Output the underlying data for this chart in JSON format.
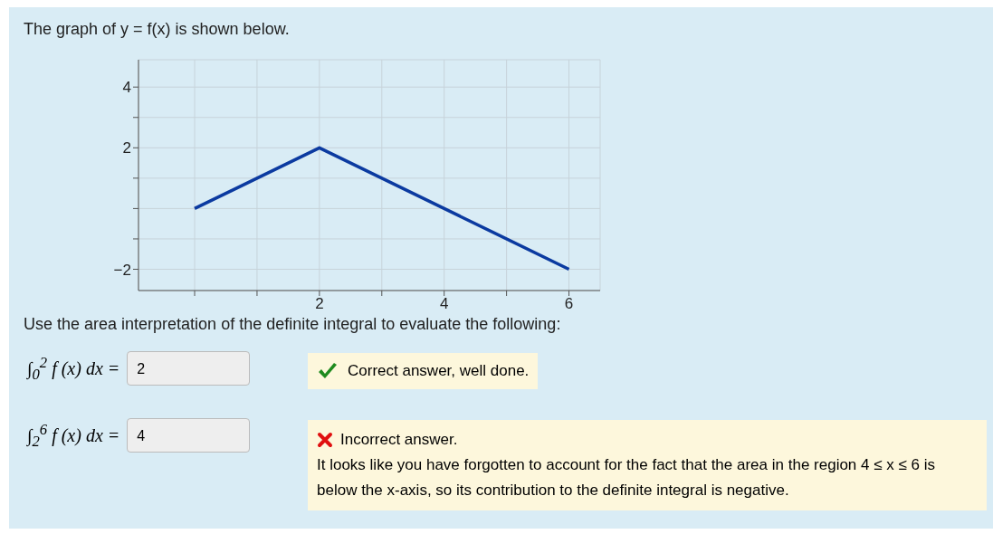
{
  "chart_data": {
    "type": "line",
    "title": "The graph of y = f(x) is shown below.",
    "x": [
      0,
      2,
      4,
      6
    ],
    "series": [
      {
        "color": "#0b3aa0",
        "values": [
          0,
          2,
          0,
          -2
        ]
      }
    ],
    "xlim": [
      -0.9,
      6.5
    ],
    "ylim": [
      -2.7,
      4.9
    ],
    "xticks": [
      {
        "value": 0,
        "label": null
      },
      {
        "value": 1,
        "label": null
      },
      2,
      {
        "value": 3,
        "label": null
      },
      4,
      {
        "value": 5,
        "label": null
      },
      6
    ],
    "yticks": [
      {
        "value": -2,
        "label": "−2"
      },
      {
        "value": -1,
        "label": null
      },
      {
        "value": 0,
        "label": null
      },
      {
        "value": 1,
        "label": null
      },
      2,
      {
        "value": 3,
        "label": null
      },
      4
    ],
    "grid": true,
    "marker": "none",
    "line_style": "solid",
    "annotations": [
      "Use the area interpretation of the definite integral to evaluate the following:",
      "∫$_{0}$$^{2}$ f (x) dx =",
      "2",
      "Correct answer, well done.",
      "∫$_{2}$$^{6}$ f (x) dx =",
      "4",
      "Incorrect answer.",
      "It looks like you have forgotten to account for the fact that the area in the region 4 ≤ x ≤ 6 is below the x-axis, so its contribution to the definite integral is negative."
    ]
  }
}
